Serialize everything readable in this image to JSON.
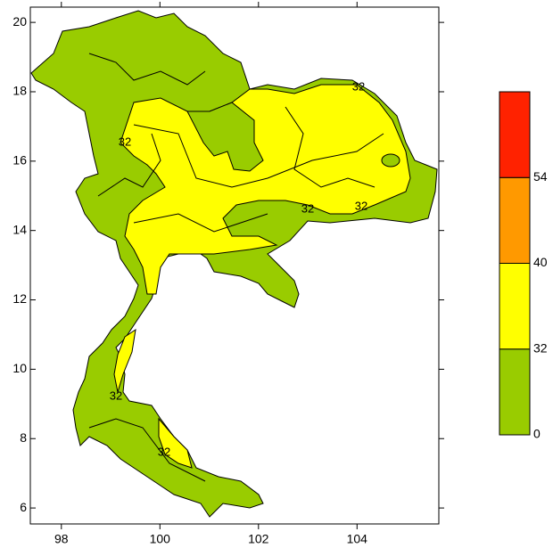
{
  "chart_data": {
    "type": "map",
    "xlim": [
      97.37,
      105.66
    ],
    "ylim": [
      5.54,
      20.44
    ],
    "xticks": [
      98,
      100,
      102,
      104
    ],
    "yticks": [
      6,
      8,
      10,
      12,
      14,
      16,
      18,
      20
    ],
    "colorbar": {
      "levels": [
        0,
        32,
        40,
        54
      ],
      "colors": [
        "#99cc00",
        "#ffff00",
        "#ff9900",
        "#ff2200"
      ]
    },
    "contour_labels": [
      32,
      32,
      32,
      32,
      32,
      32
    ]
  }
}
